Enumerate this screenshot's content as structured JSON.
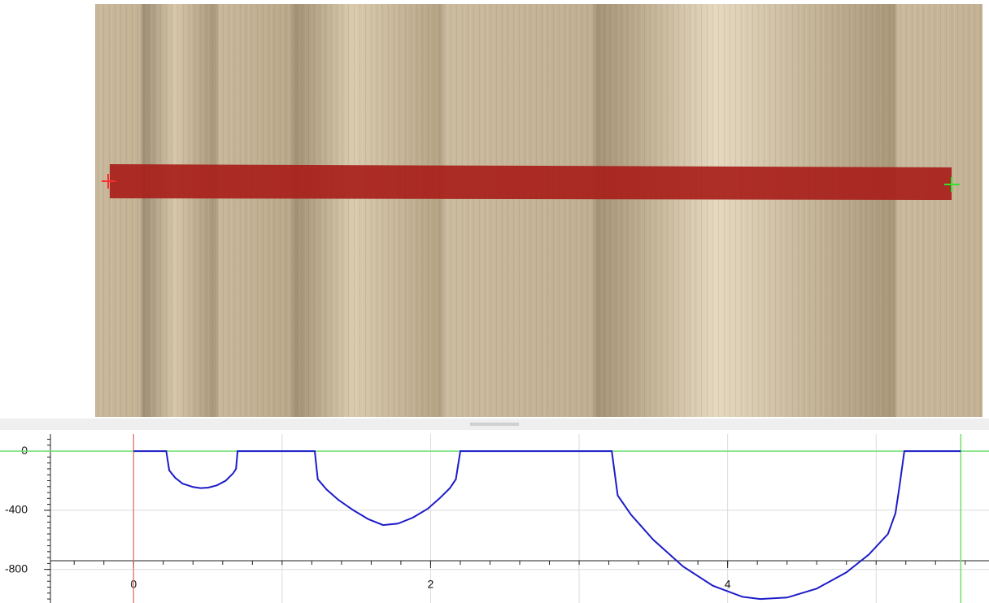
{
  "chart_data": {
    "type": "line",
    "x": [
      0,
      0.22,
      0.24,
      0.28,
      0.33,
      0.4,
      0.45,
      0.5,
      0.56,
      0.62,
      0.67,
      0.69,
      0.7,
      1.22,
      1.24,
      1.3,
      1.38,
      1.48,
      1.58,
      1.68,
      1.78,
      1.88,
      1.98,
      2.06,
      2.13,
      2.17,
      2.2,
      3.22,
      3.26,
      3.35,
      3.5,
      3.7,
      3.9,
      4.1,
      4.22,
      4.4,
      4.6,
      4.8,
      4.95,
      5.08,
      5.13,
      5.16,
      5.19,
      5.57
    ],
    "series": [
      {
        "color": "#1c1cc8",
        "values": [
          0,
          0,
          -130,
          -180,
          -220,
          -243,
          -250,
          -247,
          -232,
          -200,
          -150,
          -120,
          0,
          0,
          -190,
          -260,
          -330,
          -400,
          -460,
          -500,
          -490,
          -450,
          -390,
          -320,
          -250,
          -190,
          0,
          0,
          -300,
          -430,
          -600,
          -780,
          -910,
          -985,
          -1000,
          -990,
          -930,
          -820,
          -700,
          -560,
          -420,
          -220,
          0,
          0
        ]
      }
    ],
    "xlim": [
      -0.56,
      5.76
    ],
    "ylim": [
      -1027,
      116
    ],
    "xticks": [
      0,
      2,
      4
    ],
    "yticks": [
      0,
      -400,
      -800
    ],
    "xgrid_step": 1,
    "xminor_step": 0.2,
    "yminor_step": 40,
    "grid": true,
    "cursors": {
      "start_x": 0,
      "end_x": 5.57,
      "level": 0,
      "start_color": "#e06a6a",
      "end_color": "#6ee06e"
    }
  }
}
